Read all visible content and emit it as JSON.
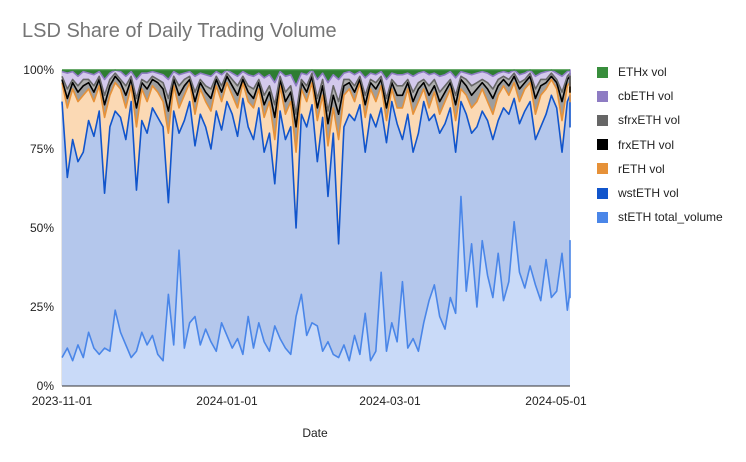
{
  "chart_data": {
    "type": "area",
    "stacking": "percent",
    "title": "LSD Share of Daily Trading Volume",
    "xlabel": "Date",
    "ylabel": "",
    "xlim": [
      "2023-11-01",
      "2024-05-10"
    ],
    "ylim": [
      0,
      100
    ],
    "y_ticks": [
      "0%",
      "25%",
      "50%",
      "75%",
      "100%"
    ],
    "x_ticks": [
      "2023-11-01",
      "2024-01-01",
      "2024-03-01",
      "2024-05-01"
    ],
    "legend_position": "right",
    "sample_step_days": 2,
    "series": [
      {
        "name": "ETHx vol",
        "color": "#2E7D32",
        "line_color": "#388E3C"
      },
      {
        "name": "cbETH vol",
        "color": "#D3C9EC",
        "line_color": "#8E7CC3"
      },
      {
        "name": "sfrxETH vol",
        "color": "#B0B0B0",
        "line_color": "#666666"
      },
      {
        "name": "frxETH vol",
        "color": "#9E9E9E",
        "line_color": "#000000"
      },
      {
        "name": "rETH vol",
        "color": "#FBD9B4",
        "line_color": "#E69138"
      },
      {
        "name": "wstETH vol",
        "color": "#B4C7EC",
        "line_color": "#1155CC"
      },
      {
        "name": "stETH total_volume",
        "color": "#C9DAF8",
        "line_color": "#4A86E8"
      }
    ],
    "cumulative_series": [
      {
        "name": "stETH total_volume",
        "values": [
          9,
          12,
          8,
          13,
          9,
          17,
          12,
          10,
          12,
          11,
          24,
          17,
          13,
          9,
          11,
          17,
          13,
          16,
          10,
          8,
          29,
          13,
          43,
          12,
          20,
          22,
          13,
          18,
          14,
          11,
          20,
          16,
          12,
          15,
          10,
          22,
          12,
          20,
          14,
          11,
          19,
          15,
          12,
          10,
          22,
          29,
          16,
          20,
          19,
          11,
          14,
          10,
          9,
          13,
          8,
          16,
          10,
          23,
          8,
          11,
          36,
          11,
          20,
          14,
          33,
          12,
          15,
          11,
          20,
          27,
          32,
          22,
          18,
          28,
          23,
          60,
          30,
          45,
          25,
          46,
          35,
          28,
          42,
          27,
          33,
          52,
          36,
          31,
          38,
          32,
          27,
          40,
          28,
          30,
          42,
          24,
          30,
          32,
          46,
          28,
          44,
          30,
          35
        ]
      },
      {
        "name": "wstETH vol",
        "values": [
          90,
          66,
          78,
          71,
          74,
          84,
          79,
          87,
          61,
          82,
          87,
          85,
          78,
          90,
          62,
          84,
          80,
          88,
          85,
          82,
          58,
          87,
          80,
          84,
          90,
          76,
          86,
          82,
          75,
          87,
          81,
          90,
          86,
          79,
          91,
          82,
          78,
          88,
          74,
          80,
          64,
          87,
          78,
          82,
          50,
          86,
          82,
          89,
          71,
          85,
          60,
          80,
          45,
          82,
          86,
          84,
          89,
          74,
          86,
          82,
          88,
          77,
          90,
          83,
          78,
          86,
          74,
          80,
          90,
          84,
          86,
          80,
          83,
          88,
          74,
          90,
          86,
          80,
          82,
          87,
          84,
          78,
          84,
          88,
          86,
          91,
          83,
          87,
          90,
          78,
          82,
          86,
          92,
          88,
          74,
          90,
          92,
          88,
          87,
          82,
          90,
          85,
          84
        ]
      },
      {
        "name": "rETH vol",
        "values": [
          96,
          88,
          94,
          90,
          92,
          94,
          90,
          95,
          85,
          92,
          96,
          94,
          88,
          95,
          82,
          94,
          90,
          95,
          93,
          90,
          80,
          95,
          88,
          92,
          96,
          86,
          94,
          90,
          87,
          95,
          90,
          96,
          92,
          88,
          96,
          90,
          88,
          94,
          85,
          90,
          78,
          95,
          86,
          90,
          74,
          94,
          90,
          96,
          84,
          92,
          76,
          88,
          78,
          92,
          94,
          90,
          96,
          85,
          94,
          90,
          95,
          84,
          94,
          88,
          88,
          94,
          86,
          90,
          94,
          88,
          93,
          86,
          90,
          94,
          84,
          94,
          92,
          88,
          90,
          94,
          90,
          86,
          92,
          95,
          92,
          96,
          90,
          94,
          96,
          86,
          92,
          94,
          97,
          94,
          84,
          95,
          96,
          94,
          94,
          90,
          95,
          92,
          90
        ]
      },
      {
        "name": "frxETH vol",
        "values": [
          97,
          91,
          96,
          93,
          95,
          96,
          93,
          97,
          89,
          95,
          98,
          96,
          92,
          97,
          88,
          96,
          94,
          97,
          96,
          94,
          87,
          97,
          92,
          95,
          97,
          90,
          96,
          93,
          91,
          97,
          93,
          98,
          95,
          92,
          97,
          93,
          91,
          96,
          89,
          93,
          85,
          97,
          90,
          93,
          82,
          96,
          93,
          98,
          88,
          95,
          83,
          92,
          86,
          95,
          96,
          93,
          97,
          89,
          96,
          94,
          97,
          88,
          96,
          92,
          92,
          96,
          90,
          94,
          96,
          92,
          95,
          90,
          93,
          96,
          89,
          97,
          95,
          92,
          94,
          96,
          94,
          91,
          95,
          97,
          95,
          98,
          94,
          96,
          98,
          91,
          95,
          96,
          98,
          96,
          90,
          97,
          98,
          96,
          97,
          93,
          97,
          95,
          94
        ]
      },
      {
        "name": "sfrxETH vol",
        "values": [
          98,
          94,
          97,
          95,
          97,
          97,
          95,
          98,
          92,
          97,
          99,
          97,
          95,
          98,
          91,
          97,
          96,
          98,
          97,
          96,
          91,
          98,
          95,
          97,
          98,
          93,
          97,
          95,
          94,
          98,
          95,
          99,
          97,
          95,
          98,
          95,
          94,
          97,
          92,
          95,
          89,
          98,
          93,
          95,
          86,
          97,
          95,
          99,
          91,
          97,
          87,
          95,
          90,
          97,
          97,
          95,
          98,
          92,
          97,
          96,
          98,
          91,
          97,
          95,
          95,
          97,
          93,
          96,
          97,
          95,
          97,
          93,
          95,
          97,
          92,
          98,
          97,
          95,
          96,
          97,
          96,
          94,
          97,
          98,
          97,
          99,
          96,
          97,
          99,
          94,
          97,
          97,
          99,
          97,
          93,
          98,
          99,
          97,
          98,
          95,
          98,
          97,
          96
        ]
      },
      {
        "name": "cbETH vol",
        "values": [
          99.5,
          99,
          99.5,
          98,
          99.5,
          99,
          98.5,
          99.5,
          97,
          99,
          100,
          99.5,
          98,
          99.5,
          97,
          99,
          99,
          99.5,
          99,
          98.5,
          97,
          99.5,
          98.5,
          99,
          99.5,
          98,
          99,
          98.5,
          98,
          99.5,
          98.5,
          100,
          99,
          98,
          99.5,
          98.5,
          98,
          99,
          97.5,
          98.5,
          96,
          99.5,
          98,
          98.5,
          95,
          99,
          98.5,
          100,
          97,
          99,
          96,
          98.5,
          97,
          99,
          99.5,
          98.5,
          99.5,
          97.5,
          99,
          98.5,
          99.5,
          97,
          99,
          98.5,
          98.5,
          99,
          98,
          99,
          99.5,
          98.5,
          99,
          98,
          98.5,
          99.5,
          97.5,
          99.5,
          99,
          98.5,
          99,
          99.5,
          99,
          98,
          99,
          99.5,
          99,
          100,
          98.5,
          99,
          100,
          98,
          99,
          99.5,
          100,
          99,
          98,
          99.5,
          100,
          99.5,
          99.5,
          98.5,
          99.5,
          99,
          99
        ]
      },
      {
        "name": "ETHx vol",
        "values": [
          100,
          100,
          100,
          100,
          100,
          100,
          100,
          100,
          100,
          100,
          100,
          100,
          100,
          100,
          100,
          100,
          100,
          100,
          100,
          100,
          100,
          100,
          100,
          100,
          100,
          100,
          100,
          100,
          100,
          100,
          100,
          100,
          100,
          100,
          100,
          100,
          100,
          100,
          100,
          100,
          100,
          100,
          100,
          100,
          100,
          100,
          100,
          100,
          100,
          100,
          100,
          100,
          100,
          100,
          100,
          100,
          100,
          100,
          100,
          100,
          100,
          100,
          100,
          100,
          100,
          100,
          100,
          100,
          100,
          100,
          100,
          100,
          100,
          100,
          100,
          100,
          100,
          100,
          100,
          100,
          100,
          100,
          100,
          100,
          100,
          100,
          100,
          100,
          100,
          100,
          100,
          100,
          100,
          100,
          100,
          100,
          100,
          100,
          100,
          100,
          100,
          100,
          100
        ]
      }
    ]
  }
}
